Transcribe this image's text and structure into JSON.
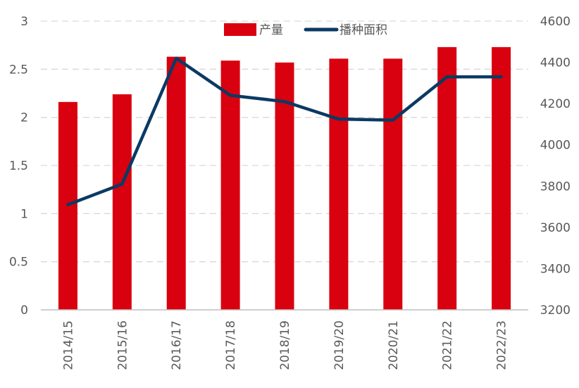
{
  "chart_data": {
    "type": "bar+line",
    "categories": [
      "2014/15",
      "2015/16",
      "2016/17",
      "2017/18",
      "2018/19",
      "2019/20",
      "2020/21",
      "2021/22",
      "2022/23"
    ],
    "series": [
      {
        "name": "产量",
        "type": "bar",
        "axis": "left",
        "color": "#D9000F",
        "values": [
          2.16,
          2.24,
          2.63,
          2.59,
          2.57,
          2.61,
          2.61,
          2.73,
          2.73
        ]
      },
      {
        "name": "播种面积",
        "type": "line",
        "axis": "right",
        "color": "#0B3A63",
        "values": [
          3710,
          3810,
          4420,
          4240,
          4210,
          4125,
          4120,
          4330,
          4330
        ]
      }
    ],
    "y_left": {
      "lim": [
        0,
        3
      ],
      "ticks": [
        "0",
        "0.5",
        "1",
        "1.5",
        "2",
        "2.5",
        "3"
      ]
    },
    "y_right": {
      "lim": [
        3200,
        4600
      ],
      "ticks": [
        "3200",
        "3400",
        "3600",
        "3800",
        "4000",
        "4200",
        "4400",
        "4600"
      ]
    },
    "grid": true,
    "legend": "top-center"
  }
}
